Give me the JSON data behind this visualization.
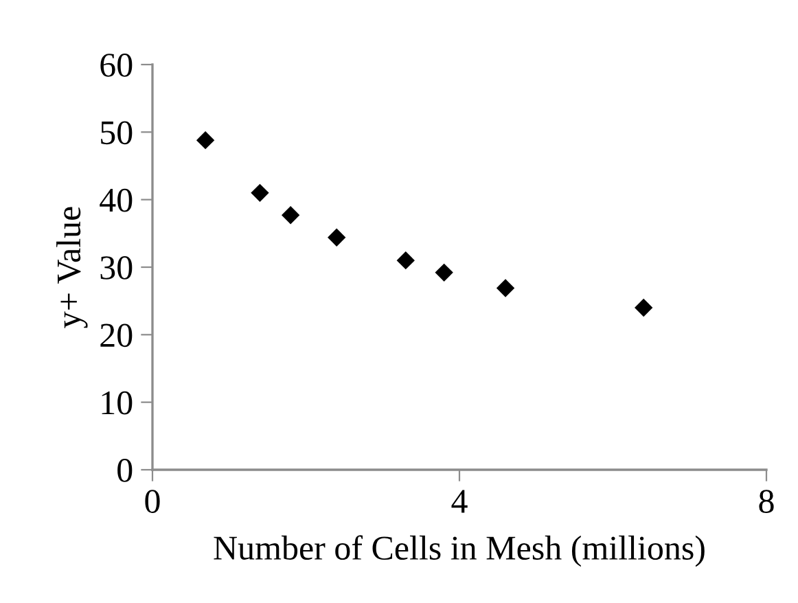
{
  "chart_data": {
    "type": "scatter",
    "xlabel": "Number of Cells in Mesh (millions)",
    "ylabel": "y+ Value",
    "x": [
      0.69,
      1.4,
      1.8,
      2.4,
      3.3,
      3.8,
      4.6,
      6.4
    ],
    "series": [
      {
        "color": "#000000",
        "values": [
          48.8,
          41.0,
          37.7,
          34.4,
          31.0,
          29.2,
          26.9,
          24.0
        ]
      }
    ],
    "xlim": [
      0,
      8
    ],
    "xticks": [
      0,
      4,
      8
    ],
    "ylim": [
      0,
      60
    ],
    "yticks": [
      0,
      10,
      20,
      30,
      40,
      50,
      60
    ],
    "grid": false,
    "legend": false,
    "marker": "diamond"
  }
}
